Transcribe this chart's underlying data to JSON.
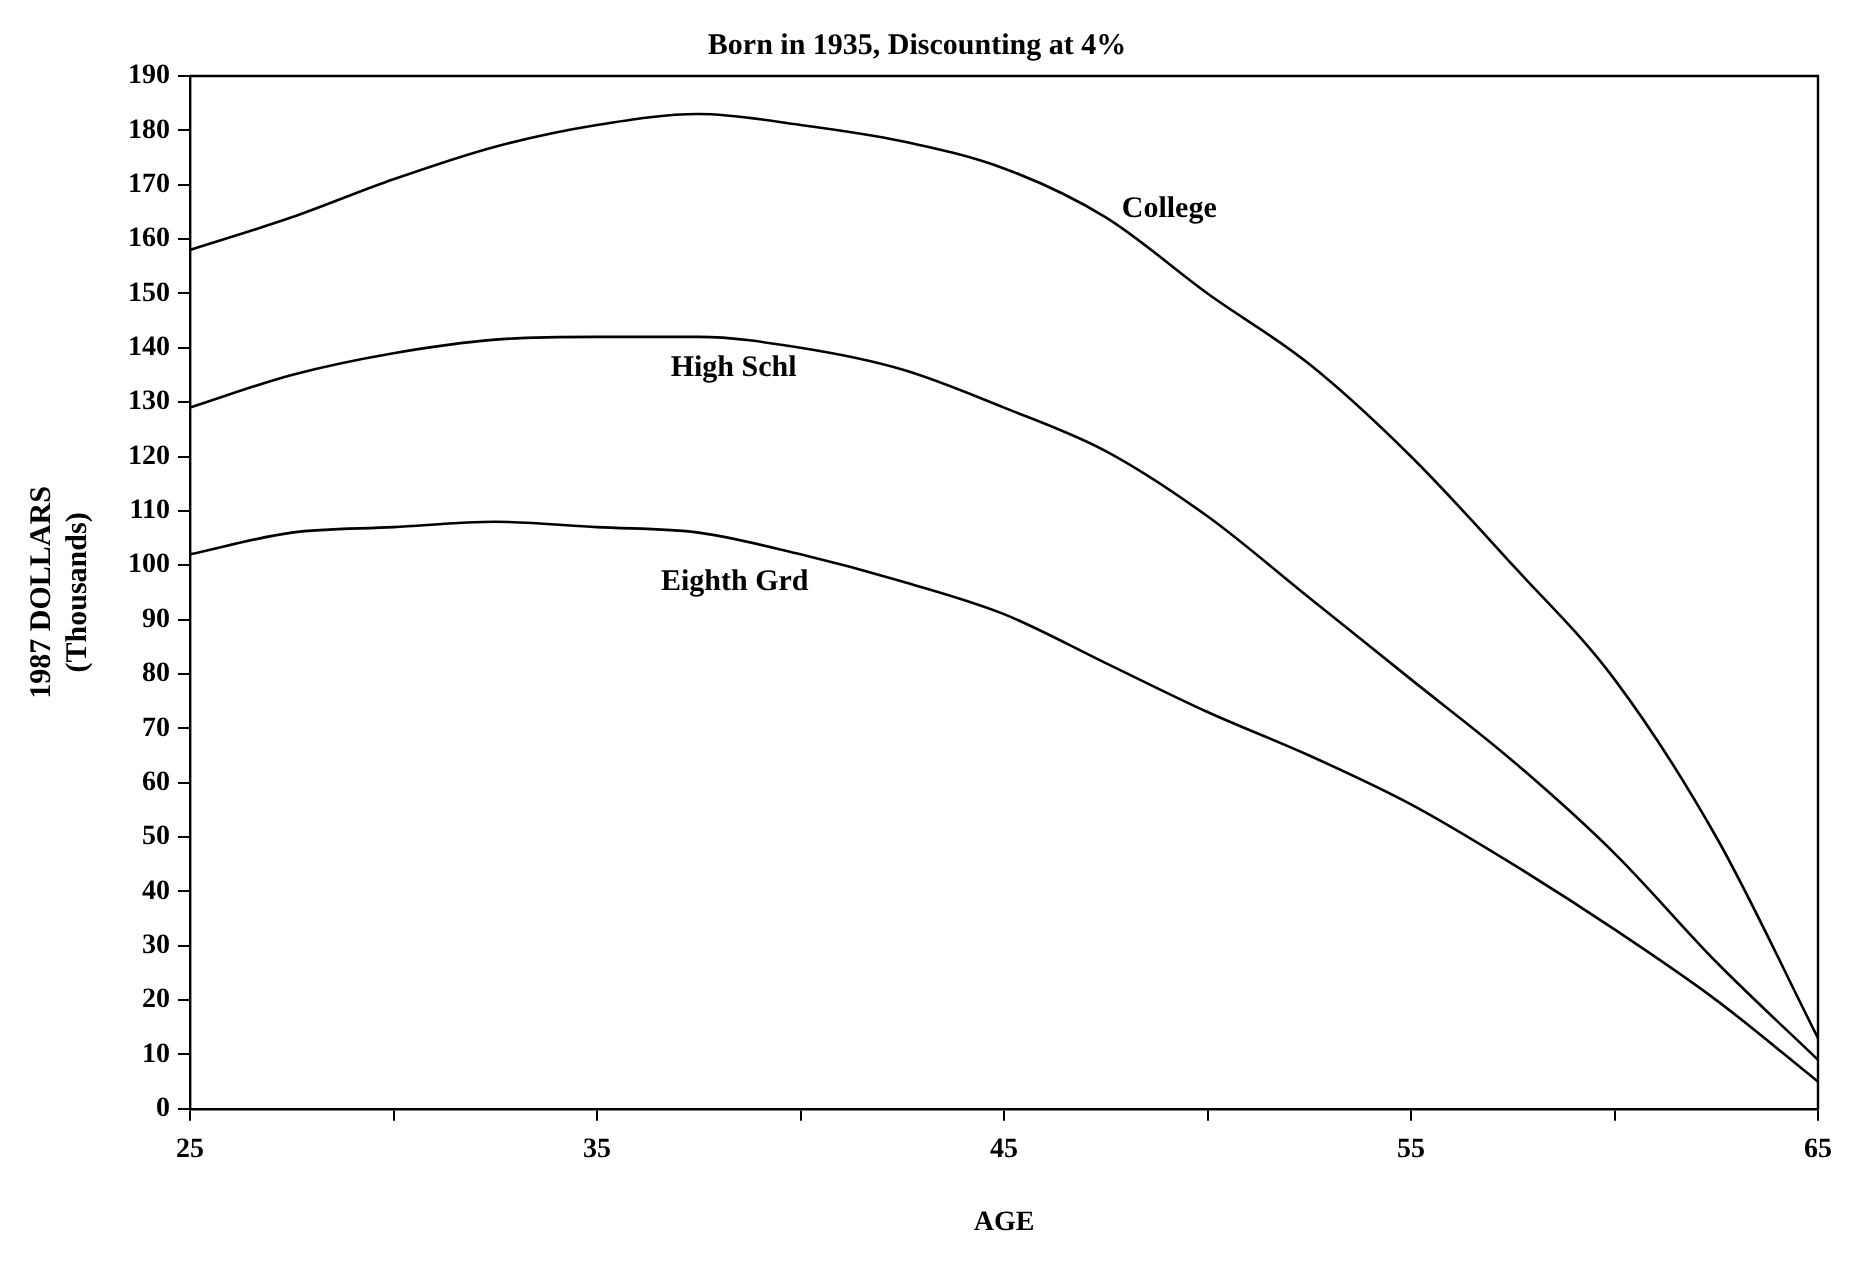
{
  "chart_data": {
    "type": "line",
    "title": "Born in 1935, Discounting at 4%",
    "xlabel": "AGE",
    "ylabel": "1987 DOLLARS\n(Thousands)",
    "x": [
      25,
      27.5,
      30,
      32.5,
      35,
      37.5,
      40,
      42.5,
      45,
      47.5,
      50,
      52.5,
      55,
      57.5,
      60,
      62.5,
      65
    ],
    "series": [
      {
        "name": "College",
        "color": "#000000",
        "values": [
          158,
          164,
          171,
          177,
          181,
          183,
          181,
          178,
          173,
          164,
          150,
          137,
          120,
          100,
          79,
          50,
          13
        ]
      },
      {
        "name": "High Schl",
        "color": "#000000",
        "values": [
          129,
          135,
          139,
          141.5,
          142,
          142,
          140,
          136,
          129,
          121,
          109,
          94,
          79,
          64,
          47,
          27,
          9
        ]
      },
      {
        "name": "Eighth Grd",
        "color": "#000000",
        "values": [
          102,
          106,
          107,
          108,
          107,
          106,
          102,
          97,
          91,
          82,
          73,
          65,
          56,
          45,
          33,
          20,
          5
        ]
      }
    ],
    "xlim": [
      25,
      65
    ],
    "xticks": [
      25,
      {
        "value": 30,
        "label": null
      },
      35,
      {
        "value": 40,
        "label": null
      },
      45,
      {
        "value": 50,
        "label": null
      },
      55,
      {
        "value": 60,
        "label": null
      },
      65
    ],
    "ylim": [
      0,
      190
    ],
    "yticks": [
      0,
      10,
      20,
      30,
      40,
      50,
      60,
      70,
      80,
      90,
      100,
      110,
      120,
      130,
      140,
      150,
      160,
      170,
      180,
      190
    ],
    "grid": false,
    "legend": false,
    "marker": "none",
    "line_style": "solid"
  }
}
